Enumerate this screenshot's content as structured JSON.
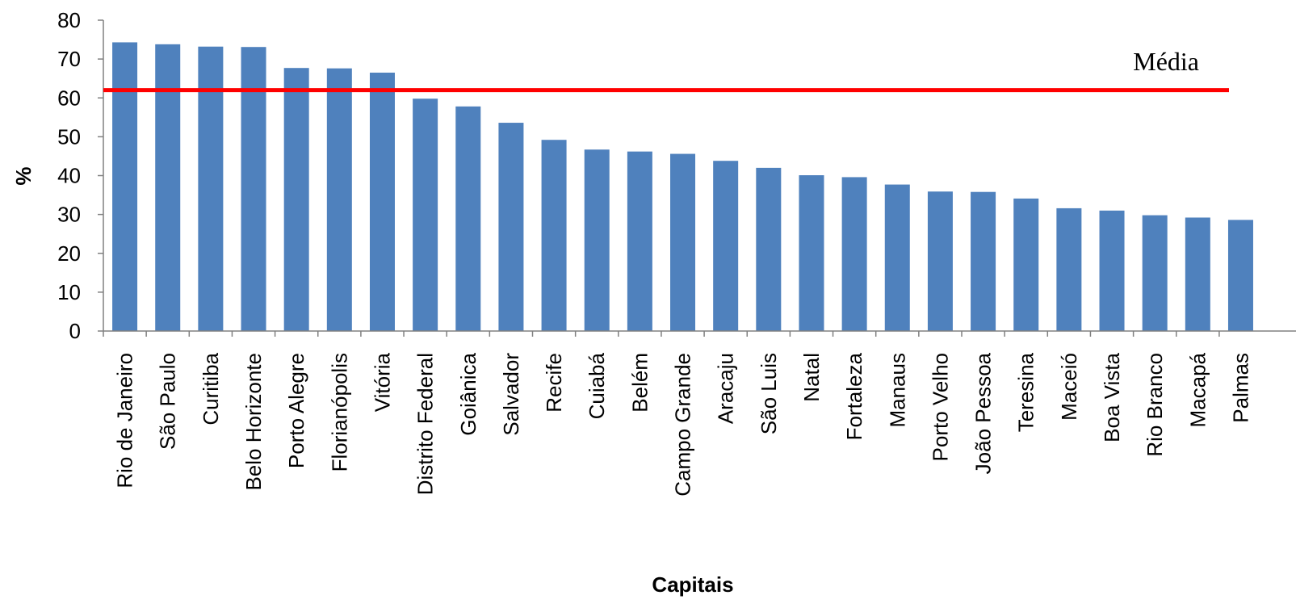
{
  "chart_data": {
    "type": "bar",
    "xlabel": "Capitais",
    "ylabel": "%",
    "ylim": [
      0,
      80
    ],
    "yticks": [
      0,
      10,
      20,
      30,
      40,
      50,
      60,
      70,
      80
    ],
    "grid": false,
    "bar_color": "#4F81BD",
    "categories": [
      "Rio de Janeiro",
      "São Paulo",
      "Curitiba",
      "Belo Horizonte",
      "Porto Alegre",
      "Florianópolis",
      "Vitória",
      "Distrito Federal",
      "Goiânica",
      "Salvador",
      "Recife",
      "Cuiabá",
      "Belém",
      "Campo Grande",
      "Aracaju",
      "São Luis",
      "Natal",
      "Fortaleza",
      "Manaus",
      "Porto Velho",
      "João Pessoa",
      "Teresina",
      "Maceió",
      "Boa Vista",
      "Rio Branco",
      "Macapá",
      "Palmas"
    ],
    "values": [
      74.3,
      73.8,
      73.2,
      73.1,
      67.7,
      67.6,
      66.5,
      59.8,
      57.8,
      53.6,
      49.2,
      46.7,
      46.2,
      45.6,
      43.8,
      42.0,
      40.1,
      39.6,
      37.7,
      35.9,
      35.8,
      34.1,
      31.6,
      31.0,
      29.8,
      29.2,
      28.6
    ],
    "reference_line": {
      "label": "Média",
      "value": 62.0,
      "color": "#FF0000"
    }
  }
}
